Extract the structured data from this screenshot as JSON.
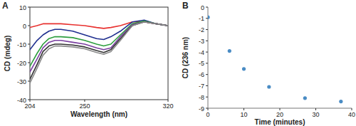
{
  "chart_data": [
    {
      "type": "line",
      "title": "A",
      "x_label": "Wavelength (nm)",
      "y_label": "CD (mdeg)",
      "x": [
        204,
        210,
        215,
        220,
        225,
        230,
        240,
        250,
        260,
        266,
        272,
        280,
        290,
        300,
        310,
        320
      ],
      "series": [
        {
          "color": "#e8312f",
          "values": [
            -1,
            0,
            1,
            1,
            1,
            1,
            0.5,
            0,
            -1,
            -1.5,
            -1,
            0,
            2,
            2,
            1,
            0
          ]
        },
        {
          "color": "#1f2f8f",
          "values": [
            -13,
            -8,
            -5,
            -3,
            -2,
            -2,
            -3,
            -5,
            -7,
            -7.5,
            -6,
            -3,
            2,
            3,
            1,
            0
          ]
        },
        {
          "color": "#2e9e3e",
          "values": [
            -22,
            -15,
            -10,
            -7,
            -6,
            -6,
            -6.5,
            -8,
            -10,
            -11,
            -10,
            -5,
            1,
            2.5,
            1,
            0
          ]
        },
        {
          "color": "#7a3fa0",
          "values": [
            -25,
            -18,
            -12,
            -9,
            -8,
            -8,
            -9,
            -10,
            -12,
            -13,
            -12,
            -6,
            0.5,
            2,
            1,
            0
          ]
        },
        {
          "color": "#333333",
          "values": [
            -29,
            -21,
            -14,
            -11,
            -10,
            -10,
            -10.5,
            -11.5,
            -13.5,
            -14.5,
            -13,
            -7,
            0,
            2,
            1,
            0
          ]
        },
        {
          "color": "#8a8a8a",
          "values": [
            -31,
            -23,
            -16,
            -12.5,
            -11,
            -11,
            -11.5,
            -12.5,
            -14.5,
            -15.5,
            -14,
            -8,
            0,
            2,
            1,
            0
          ]
        }
      ],
      "xlim": [
        204,
        320
      ],
      "xticks": [
        204,
        250,
        320
      ],
      "ylim": [
        -40,
        10
      ],
      "yticks": [
        -40,
        -30,
        -20,
        -10,
        0,
        10
      ],
      "grid": false
    },
    {
      "type": "scatter",
      "title": "B",
      "x_label": "Time (minutes)",
      "y_label": "CD (236 nm)",
      "x": [
        0,
        6,
        10,
        17,
        27,
        37
      ],
      "values": [
        -0.9,
        -3.9,
        -5.5,
        -7.1,
        -8.1,
        -8.4
      ],
      "color": "#4a8cc4",
      "marker": "circle",
      "xlim": [
        0,
        40
      ],
      "xticks": [
        0,
        10,
        20,
        30,
        40
      ],
      "ylim": [
        -9,
        0
      ],
      "yticks": [
        -9,
        -8,
        -7,
        -6,
        -5,
        -4,
        -3,
        -2,
        -1,
        0
      ],
      "grid": false
    }
  ]
}
